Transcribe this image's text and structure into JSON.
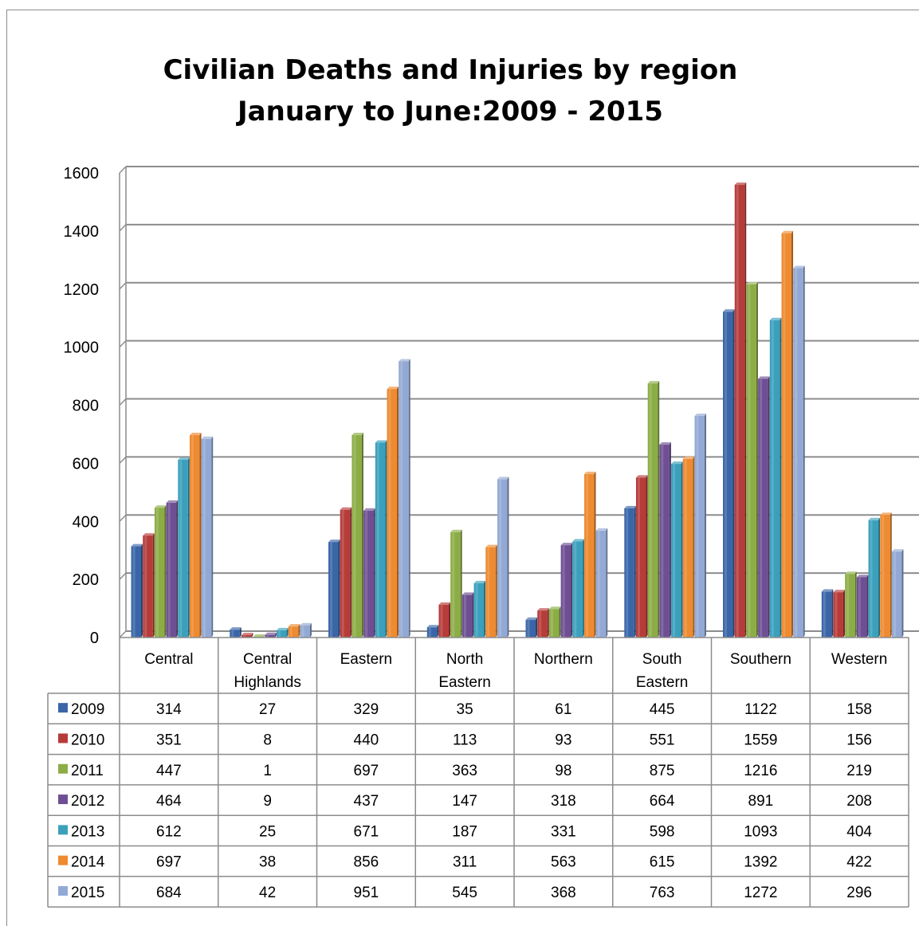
{
  "chart_data": {
    "type": "bar",
    "title": "Civilian Deaths and Injuries by region",
    "subtitle": "January to June:2009 - 2015",
    "categories": [
      [
        "Central"
      ],
      [
        "Central",
        "Highlands"
      ],
      [
        "Eastern"
      ],
      [
        "North",
        "Eastern"
      ],
      [
        "Northern"
      ],
      [
        "South",
        "Eastern"
      ],
      [
        "Southern"
      ],
      [
        "Western"
      ]
    ],
    "ylim": [
      0,
      1600
    ],
    "yticks": [
      "0",
      "200",
      "400",
      "600",
      "800",
      "1000",
      "1200",
      "1400",
      "1600"
    ],
    "grid": true,
    "legend": "data-table",
    "series": [
      {
        "name": "2009",
        "color": "#3a66a8",
        "values": [
          314,
          27,
          329,
          35,
          61,
          445,
          1122,
          158
        ]
      },
      {
        "name": "2010",
        "color": "#b63c3a",
        "values": [
          351,
          8,
          440,
          113,
          93,
          551,
          1559,
          156
        ]
      },
      {
        "name": "2011",
        "color": "#8cad46",
        "values": [
          447,
          1,
          697,
          363,
          98,
          875,
          1216,
          219
        ]
      },
      {
        "name": "2012",
        "color": "#6e4f93",
        "values": [
          464,
          9,
          437,
          147,
          318,
          664,
          891,
          208
        ]
      },
      {
        "name": "2013",
        "color": "#3aa0bc",
        "values": [
          612,
          25,
          671,
          187,
          331,
          598,
          1093,
          404
        ]
      },
      {
        "name": "2014",
        "color": "#ee8a30",
        "values": [
          697,
          38,
          856,
          311,
          563,
          615,
          1392,
          422
        ]
      },
      {
        "name": "2015",
        "color": "#93a9d5",
        "values": [
          684,
          42,
          951,
          545,
          368,
          763,
          1272,
          296
        ]
      }
    ]
  }
}
